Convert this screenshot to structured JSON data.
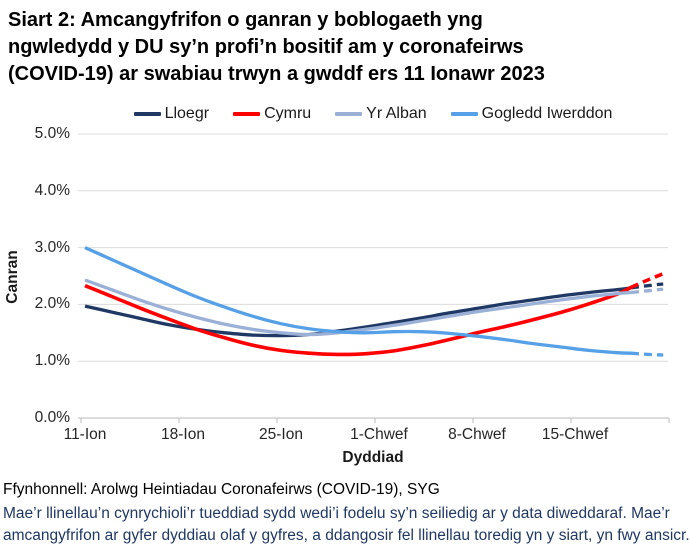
{
  "title": {
    "lines": [
      "Siart 2: Amcangyfrifon o ganran y boblogaeth yng",
      "ngwledydd y DU sy’n profi’n bositif am y coronafeirws",
      "(COVID-19) ar swabiau trwyn a gwddf ers 11 Ionawr 2023"
    ]
  },
  "legend": {
    "items": [
      {
        "label": "Lloegr",
        "color": "#1F3864"
      },
      {
        "label": "Cymru",
        "color": "#FF0000"
      },
      {
        "label": "Yr Alban",
        "color": "#9BB0D6"
      },
      {
        "label": "Gogledd Iwerddon",
        "color": "#55A0E6"
      }
    ]
  },
  "axes": {
    "y_label": "Canran",
    "x_label": "Dyddiad",
    "y_ticks": [
      {
        "label": "5.0%",
        "value": 5
      },
      {
        "label": "4.0%",
        "value": 4
      },
      {
        "label": "3.0%",
        "value": 3
      },
      {
        "label": "2.0%",
        "value": 2
      },
      {
        "label": "1.0%",
        "value": 1
      },
      {
        "label": "0.0%",
        "value": 0
      }
    ],
    "x_ticks": [
      {
        "label": "11-Ion",
        "day": 0
      },
      {
        "label": "18-Ion",
        "day": 7
      },
      {
        "label": "25-Ion",
        "day": 14
      },
      {
        "label": "1-Chwef",
        "day": 21
      },
      {
        "label": "8-Chwef",
        "day": 28
      },
      {
        "label": "15-Chwef",
        "day": 35
      }
    ]
  },
  "footer": {
    "source": "Ffynhonnell: Arolwg Heintiadau Coronafeirws (COVID-19), SYG",
    "note_lines": [
      "Mae’r llinellau’n cynrychioli’r tueddiad sydd wedi’i fodelu sy’n seiliedig ar y data diweddaraf. Mae’r",
      "amcangyfrifon ar gyfer dyddiau olaf y gyfres, a ddangosir fel llinellau toredig yn y siart, yn fwy ansicr."
    ],
    "note_color": "#1F3864"
  },
  "chart_data": {
    "type": "line",
    "title": "Siart 2: Amcangyfrifon o ganran y boblogaeth yng ngwledydd y DU sy’n profi’n bositif am y coronafeirws (COVID-19) ar swabiau trwyn a gwddf ers 11 Ionawr 2023",
    "xlabel": "Dyddiad",
    "ylabel": "Canran",
    "x_unit": "diwrnodau ers 11 Ionawr 2023",
    "x_tick_labels": [
      "11-Ion",
      "18-Ion",
      "25-Ion",
      "1-Chwef",
      "8-Chwef",
      "15-Chwef"
    ],
    "x_tick_days": [
      0,
      7,
      14,
      21,
      28,
      35
    ],
    "xlim_days": [
      0,
      41.3
    ],
    "ylim": [
      0,
      5
    ],
    "y_gridlines": [
      1,
      2,
      3,
      4,
      5
    ],
    "grid": true,
    "legend_position": "top",
    "dashed_meaning": "llinellau toredig = amcangyfrifon dyddiau olaf y gyfres (mwy ansicr)",
    "series": [
      {
        "name": "Lloegr",
        "color": "#1F3864",
        "days": [
          0,
          2,
          4,
          6,
          8,
          10,
          12,
          14,
          16,
          18,
          20,
          22,
          24,
          26,
          28,
          30,
          32,
          34,
          36,
          38,
          39
        ],
        "values": [
          1.97,
          1.86,
          1.75,
          1.64,
          1.56,
          1.5,
          1.46,
          1.45,
          1.47,
          1.53,
          1.6,
          1.68,
          1.76,
          1.85,
          1.93,
          2.01,
          2.08,
          2.15,
          2.21,
          2.26,
          2.29
        ],
        "dashed_days": [
          39,
          40.2,
          41.3
        ],
        "dashed_values": [
          2.29,
          2.33,
          2.36
        ]
      },
      {
        "name": "Cymru",
        "color": "#FF0000",
        "days": [
          0,
          2,
          4,
          6,
          8,
          10,
          12,
          14,
          16,
          18,
          20,
          22,
          24,
          26,
          28,
          30,
          32,
          34,
          36,
          38,
          39
        ],
        "values": [
          2.33,
          2.13,
          1.93,
          1.74,
          1.56,
          1.41,
          1.28,
          1.19,
          1.14,
          1.12,
          1.13,
          1.18,
          1.27,
          1.38,
          1.5,
          1.61,
          1.73,
          1.86,
          2.01,
          2.18,
          2.3
        ],
        "dashed_days": [
          39,
          40.2,
          41.3
        ],
        "dashed_values": [
          2.3,
          2.43,
          2.54
        ]
      },
      {
        "name": "Yr Alban",
        "color": "#9BB0D6",
        "days": [
          0,
          2,
          4,
          6,
          8,
          10,
          12,
          14,
          16,
          18,
          20,
          22,
          24,
          26,
          28,
          30,
          32,
          34,
          36,
          38,
          39
        ],
        "values": [
          2.43,
          2.25,
          2.07,
          1.91,
          1.77,
          1.65,
          1.56,
          1.5,
          1.47,
          1.5,
          1.56,
          1.63,
          1.71,
          1.79,
          1.87,
          1.94,
          2.01,
          2.08,
          2.14,
          2.19,
          2.21
        ],
        "dashed_days": [
          39,
          40.2,
          41.3
        ],
        "dashed_values": [
          2.21,
          2.24,
          2.27
        ]
      },
      {
        "name": "Gogledd Iwerddon",
        "color": "#55A0E6",
        "days": [
          0,
          2,
          4,
          6,
          8,
          10,
          12,
          14,
          16,
          18,
          20,
          22,
          24,
          26,
          28,
          30,
          32,
          34,
          36,
          38,
          39
        ],
        "values": [
          3.0,
          2.78,
          2.56,
          2.34,
          2.13,
          1.95,
          1.79,
          1.66,
          1.57,
          1.52,
          1.5,
          1.52,
          1.52,
          1.49,
          1.44,
          1.38,
          1.31,
          1.25,
          1.19,
          1.15,
          1.14
        ],
        "dashed_days": [
          39,
          40.2,
          41.3
        ],
        "dashed_values": [
          1.14,
          1.12,
          1.11
        ]
      }
    ]
  },
  "colors": {
    "gridline": "#DCDCDC",
    "axis_line": "#C6C6C6",
    "tick_mark": "#C6C6C6"
  }
}
